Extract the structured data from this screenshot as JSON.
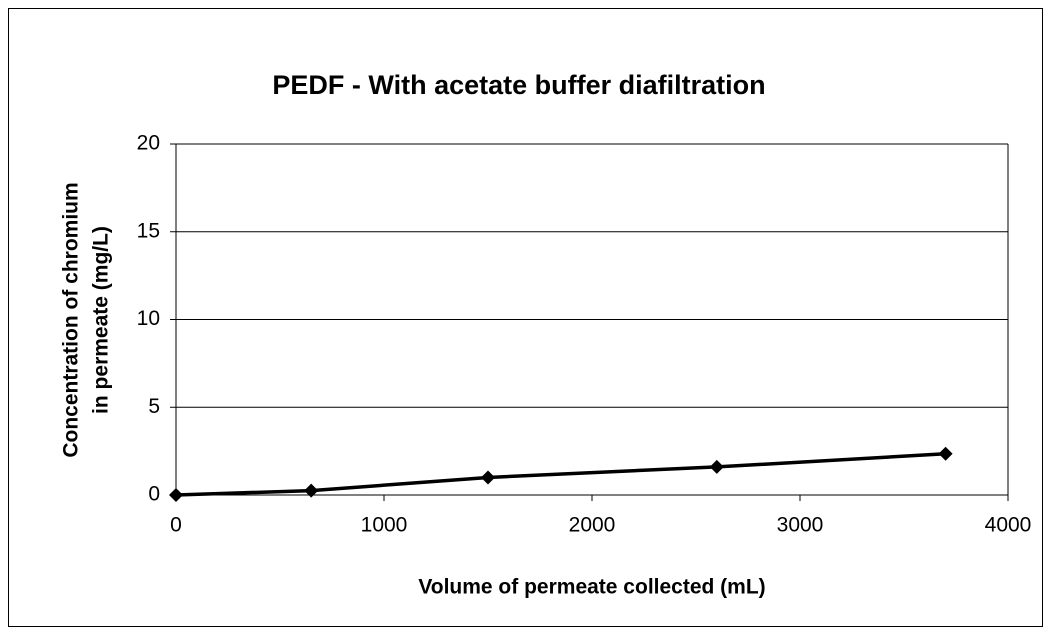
{
  "chart_data": {
    "type": "line",
    "title": "PEDF - With acetate buffer diafiltration",
    "x_label": "Volume of permeate collected (mL)",
    "y_label": [
      "Concentration of chromium",
      "in permeate (mg/L)"
    ],
    "x": [
      0,
      650,
      1500,
      2600,
      3700
    ],
    "series": [
      {
        "name": "PEDF",
        "color": "#000000",
        "values": [
          0,
          0.25,
          1.0,
          1.6,
          2.35
        ]
      }
    ],
    "xlim": [
      0,
      4000
    ],
    "xticks": [
      0,
      1000,
      2000,
      3000,
      4000
    ],
    "ylim": [
      0,
      20
    ],
    "yticks": [
      0,
      5,
      10,
      15,
      20
    ],
    "grid": true
  }
}
